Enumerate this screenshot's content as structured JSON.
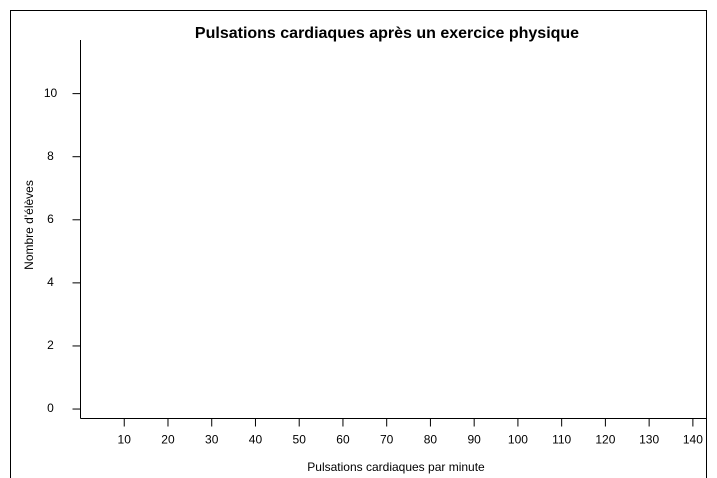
{
  "chart_data": {
    "type": "histogram",
    "title": "Pulsations cardiaques après un exercice physique",
    "x_label": "Pulsations cardiaques par minute",
    "y_label": "Nombre d'élèves",
    "xlim": [
      0,
      143
    ],
    "xticks": [
      10,
      20,
      30,
      40,
      50,
      60,
      70,
      80,
      90,
      100,
      110,
      120,
      130,
      140
    ],
    "ylim": [
      -0.3,
      11.7
    ],
    "yticks": [
      0,
      2,
      4,
      6,
      8,
      10
    ],
    "bins": [],
    "counts": [],
    "grid": false
  }
}
